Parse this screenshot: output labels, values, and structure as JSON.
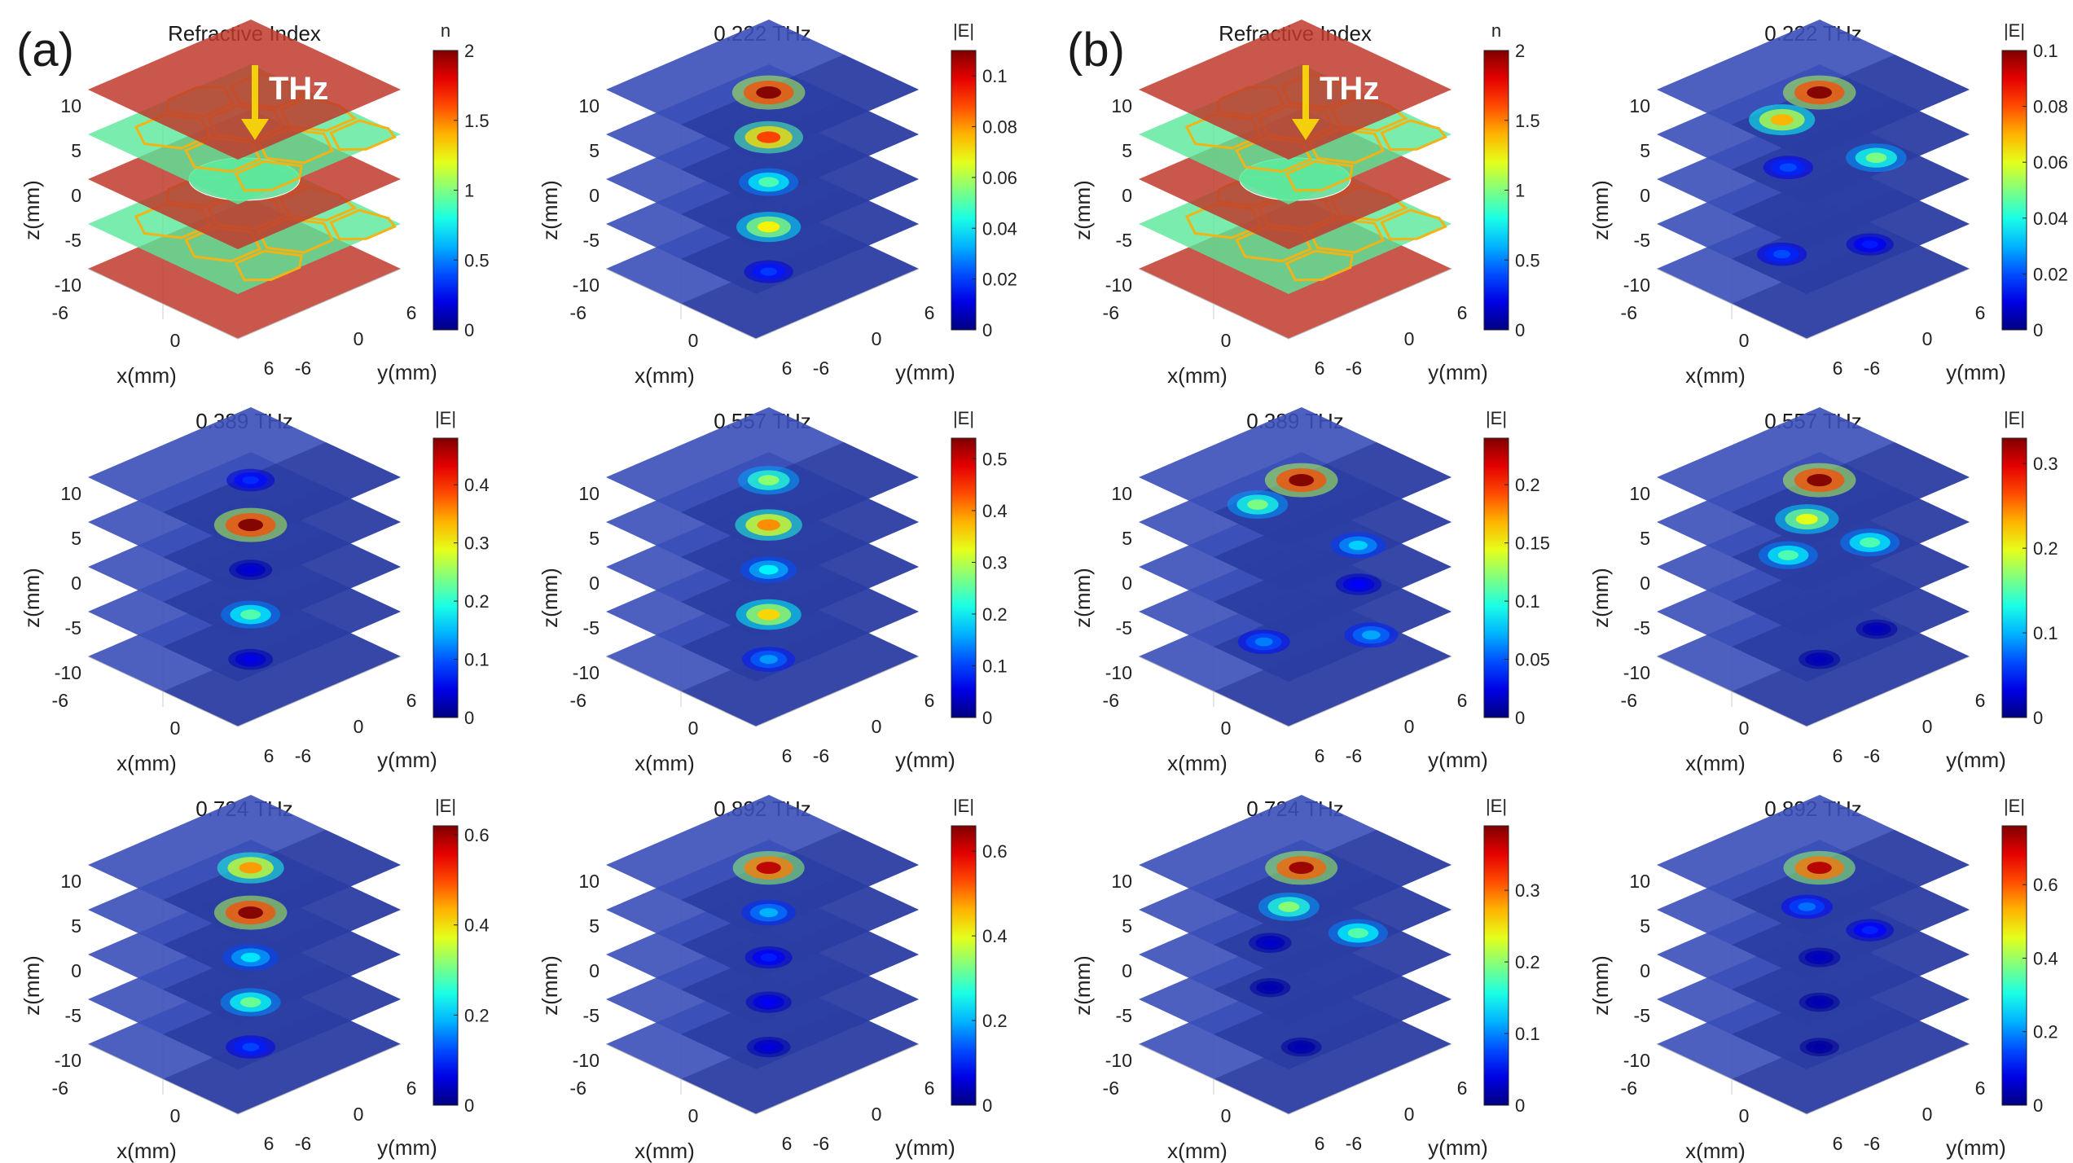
{
  "figure": {
    "group_labels": [
      "(a)",
      "(b)"
    ],
    "arrow_label": "THz"
  },
  "chart_data": [
    {
      "type": "heatmap",
      "id": "a-ri",
      "group": "a",
      "title": "Refractive Index",
      "colorbar_label": "n",
      "clim": [
        0,
        2
      ],
      "cticks": [
        "0",
        "0.5",
        "1",
        "1.5",
        "2"
      ],
      "kind": "ri",
      "xlabel": "x(mm)",
      "ylabel": "y(mm)",
      "zlabel": "z(mm)",
      "zticks": [
        "10",
        "5",
        "0",
        "-5",
        "-10"
      ],
      "xticks": [
        "-6",
        "0",
        "6"
      ],
      "yticks": [
        "-6",
        "0",
        "6"
      ],
      "layers": [
        {
          "z": 10,
          "material": "substrate",
          "n": 2
        },
        {
          "z": 5,
          "material": "honeycomb film",
          "n": 1
        },
        {
          "z": 0,
          "material": "substrate with circular hole",
          "n": 2
        },
        {
          "z": -5,
          "material": "honeycomb film",
          "n": 1
        },
        {
          "z": -10,
          "material": "substrate",
          "n": 2
        }
      ]
    },
    {
      "type": "heatmap",
      "id": "a-222",
      "group": "a",
      "title": "0.222 THz",
      "colorbar_label": "|E|",
      "clim": [
        0,
        0.11
      ],
      "cticks": [
        "0",
        "0.02",
        "0.04",
        "0.06",
        "0.08",
        "0.1"
      ],
      "kind": "field",
      "xlabel": "x(mm)",
      "ylabel": "y(mm)",
      "zlabel": "z(mm)",
      "zticks": [
        "10",
        "5",
        "0",
        "-5",
        "-10"
      ],
      "xticks": [
        "-6",
        "0",
        "6"
      ],
      "yticks": [
        "-6",
        "0",
        "6"
      ],
      "spots": [
        {
          "z": 10,
          "x": 0.5,
          "y": 0,
          "E": 0.11
        },
        {
          "z": 5,
          "x": 0.5,
          "y": 0,
          "E": 0.09
        },
        {
          "z": 0,
          "x": 0.5,
          "y": 0,
          "E": 0.05
        },
        {
          "z": -5,
          "x": 0.5,
          "y": 0,
          "E": 0.07
        },
        {
          "z": -10,
          "x": 0.5,
          "y": 0,
          "E": 0.02
        }
      ]
    },
    {
      "type": "heatmap",
      "id": "b-ri",
      "group": "b",
      "title": "Refractive Index",
      "colorbar_label": "n",
      "clim": [
        0,
        2
      ],
      "cticks": [
        "0",
        "0.5",
        "1",
        "1.5",
        "2"
      ],
      "kind": "ri",
      "xlabel": "x(mm)",
      "ylabel": "y(mm)",
      "zlabel": "z(mm)",
      "zticks": [
        "10",
        "5",
        "0",
        "-5",
        "-10"
      ],
      "xticks": [
        "-6",
        "0",
        "6"
      ],
      "yticks": [
        "-6",
        "0",
        "6"
      ],
      "layers": [
        {
          "z": 10,
          "material": "substrate",
          "n": 2
        },
        {
          "z": 5,
          "material": "honeycomb film",
          "n": 1
        },
        {
          "z": 0,
          "material": "substrate with circular hole",
          "n": 2
        },
        {
          "z": -5,
          "material": "honeycomb film",
          "n": 1
        },
        {
          "z": -10,
          "material": "substrate",
          "n": 2
        }
      ]
    },
    {
      "type": "heatmap",
      "id": "b-222",
      "group": "b",
      "title": "0.222 THz",
      "colorbar_label": "|E|",
      "clim": [
        0,
        0.1
      ],
      "cticks": [
        "0",
        "0.02",
        "0.04",
        "0.06",
        "0.08",
        "0.1"
      ],
      "kind": "field",
      "xlabel": "x(mm)",
      "ylabel": "y(mm)",
      "zlabel": "z(mm)",
      "zticks": [
        "10",
        "5",
        "0",
        "-5",
        "-10"
      ],
      "xticks": [
        "-6",
        "0",
        "6"
      ],
      "yticks": [
        "-6",
        "0",
        "6"
      ],
      "spots": [
        {
          "z": 10,
          "x": 0.5,
          "y": 0,
          "E": 0.1
        },
        {
          "z": 5,
          "x": -2.5,
          "y": 0,
          "E": 0.07
        },
        {
          "z": 5,
          "x": 4.5,
          "y": 0.5,
          "E": 0.05
        },
        {
          "z": 0,
          "x": -2,
          "y": 0,
          "E": 0.02
        },
        {
          "z": -5,
          "x": 4,
          "y": 0.5,
          "E": 0.015
        },
        {
          "z": -10,
          "x": -2.5,
          "y": 0,
          "E": 0.02
        }
      ]
    },
    {
      "type": "heatmap",
      "id": "a-389",
      "group": "a",
      "title": "0.389 THz",
      "colorbar_label": "|E|",
      "clim": [
        0,
        0.48
      ],
      "cticks": [
        "0",
        "0.1",
        "0.2",
        "0.3",
        "0.4"
      ],
      "kind": "field",
      "xlabel": "x(mm)",
      "ylabel": "y(mm)",
      "zlabel": "z(mm)",
      "zticks": [
        "10",
        "5",
        "0",
        "-5",
        "-10"
      ],
      "xticks": [
        "-6",
        "0",
        "6"
      ],
      "yticks": [
        "-6",
        "0",
        "6"
      ],
      "spots": [
        {
          "z": 10,
          "x": 0.5,
          "y": 0,
          "E": 0.08
        },
        {
          "z": 5,
          "x": 0.5,
          "y": 0,
          "E": 0.48
        },
        {
          "z": 0,
          "x": 0.5,
          "y": 0,
          "E": 0.04
        },
        {
          "z": -5,
          "x": 0.5,
          "y": 0,
          "E": 0.22
        },
        {
          "z": -10,
          "x": 0.5,
          "y": 0,
          "E": 0.05
        }
      ]
    },
    {
      "type": "heatmap",
      "id": "a-557",
      "group": "a",
      "title": "0.557 THz",
      "colorbar_label": "|E|",
      "clim": [
        0,
        0.54
      ],
      "cticks": [
        "0",
        "0.1",
        "0.2",
        "0.3",
        "0.4",
        "0.5"
      ],
      "kind": "field",
      "xlabel": "x(mm)",
      "ylabel": "y(mm)",
      "zlabel": "z(mm)",
      "zticks": [
        "10",
        "5",
        "0",
        "-5",
        "-10"
      ],
      "xticks": [
        "-6",
        "0",
        "6"
      ],
      "yticks": [
        "-6",
        "0",
        "6"
      ],
      "spots": [
        {
          "z": 10,
          "x": 0.5,
          "y": 0,
          "E": 0.28
        },
        {
          "z": 5,
          "x": 0.5,
          "y": 0,
          "E": 0.4
        },
        {
          "z": 0,
          "x": 0.5,
          "y": 0,
          "E": 0.2
        },
        {
          "z": -5,
          "x": 0.5,
          "y": 0,
          "E": 0.36
        },
        {
          "z": -10,
          "x": 0.5,
          "y": 0,
          "E": 0.15
        }
      ]
    },
    {
      "type": "heatmap",
      "id": "b-389",
      "group": "b",
      "title": "0.389 THz",
      "colorbar_label": "|E|",
      "clim": [
        0,
        0.24
      ],
      "cticks": [
        "0",
        "0.05",
        "0.1",
        "0.15",
        "0.2"
      ],
      "kind": "field",
      "xlabel": "x(mm)",
      "ylabel": "y(mm)",
      "zlabel": "z(mm)",
      "zticks": [
        "10",
        "5",
        "0",
        "-5",
        "-10"
      ],
      "xticks": [
        "-6",
        "0",
        "6"
      ],
      "yticks": [
        "-6",
        "0",
        "6"
      ],
      "spots": [
        {
          "z": 10,
          "x": 0.5,
          "y": 0,
          "E": 0.24
        },
        {
          "z": 5,
          "x": -3,
          "y": 0,
          "E": 0.12
        },
        {
          "z": 5,
          "x": 4.5,
          "y": 0.5,
          "E": 0.08
        },
        {
          "z": 0,
          "x": 4,
          "y": 1,
          "E": 0.03
        },
        {
          "z": -5,
          "x": 5,
          "y": 1,
          "E": 0.07
        },
        {
          "z": -10,
          "x": -2.5,
          "y": 0,
          "E": 0.06
        }
      ]
    },
    {
      "type": "heatmap",
      "id": "b-557",
      "group": "b",
      "title": "0.557 THz",
      "colorbar_label": "|E|",
      "clim": [
        0,
        0.33
      ],
      "cticks": [
        "0",
        "0.1",
        "0.2",
        "0.3"
      ],
      "kind": "field",
      "xlabel": "x(mm)",
      "ylabel": "y(mm)",
      "zlabel": "z(mm)",
      "zticks": [
        "10",
        "5",
        "0",
        "-5",
        "-10"
      ],
      "xticks": [
        "-6",
        "0",
        "6"
      ],
      "yticks": [
        "-6",
        "0",
        "6"
      ],
      "spots": [
        {
          "z": 10,
          "x": 0.5,
          "y": 0,
          "E": 0.33
        },
        {
          "z": 5,
          "x": -0.5,
          "y": 0,
          "E": 0.2
        },
        {
          "z": 5,
          "x": 4,
          "y": 0.5,
          "E": 0.15
        },
        {
          "z": 0,
          "x": -2,
          "y": 0,
          "E": 0.15
        },
        {
          "z": -5,
          "x": 4,
          "y": 1,
          "E": 0.02
        },
        {
          "z": -10,
          "x": 0.5,
          "y": 0,
          "E": 0.02
        }
      ]
    },
    {
      "type": "heatmap",
      "id": "a-724",
      "group": "a",
      "title": "0.724 THz",
      "colorbar_label": "|E|",
      "clim": [
        0,
        0.62
      ],
      "cticks": [
        "0",
        "0.2",
        "0.4",
        "0.6"
      ],
      "kind": "field",
      "xlabel": "x(mm)",
      "ylabel": "y(mm)",
      "zlabel": "z(mm)",
      "zticks": [
        "10",
        "5",
        "0",
        "-5",
        "-10"
      ],
      "xticks": [
        "-6",
        "0",
        "6"
      ],
      "yticks": [
        "-6",
        "0",
        "6"
      ],
      "spots": [
        {
          "z": 10,
          "x": 0.5,
          "y": 0,
          "E": 0.45
        },
        {
          "z": 5,
          "x": 0.5,
          "y": 0,
          "E": 0.62
        },
        {
          "z": 0,
          "x": 0.5,
          "y": 0,
          "E": 0.22
        },
        {
          "z": -5,
          "x": 0.5,
          "y": 0,
          "E": 0.3
        },
        {
          "z": -10,
          "x": 0.5,
          "y": 0,
          "E": 0.12
        }
      ]
    },
    {
      "type": "heatmap",
      "id": "a-892",
      "group": "a",
      "title": "0.892 THz",
      "colorbar_label": "|E|",
      "clim": [
        0,
        0.66
      ],
      "cticks": [
        "0",
        "0.2",
        "0.4",
        "0.6"
      ],
      "kind": "field",
      "xlabel": "x(mm)",
      "ylabel": "y(mm)",
      "zlabel": "z(mm)",
      "zticks": [
        "10",
        "5",
        "0",
        "-5",
        "-10"
      ],
      "xticks": [
        "-6",
        "0",
        "6"
      ],
      "yticks": [
        "-6",
        "0",
        "6"
      ],
      "spots": [
        {
          "z": 10,
          "x": 0.5,
          "y": 0,
          "E": 0.62
        },
        {
          "z": 5,
          "x": 0.5,
          "y": 0,
          "E": 0.2
        },
        {
          "z": 0,
          "x": 0.5,
          "y": 0,
          "E": 0.1
        },
        {
          "z": -5,
          "x": 0.5,
          "y": 0,
          "E": 0.08
        },
        {
          "z": -10,
          "x": 0.5,
          "y": 0,
          "E": 0.06
        }
      ]
    },
    {
      "type": "heatmap",
      "id": "b-724",
      "group": "b",
      "title": "0.724 THz",
      "colorbar_label": "|E|",
      "clim": [
        0,
        0.39
      ],
      "cticks": [
        "0",
        "0.1",
        "0.2",
        "0.3"
      ],
      "kind": "field",
      "xlabel": "x(mm)",
      "ylabel": "y(mm)",
      "zlabel": "z(mm)",
      "zticks": [
        "10",
        "5",
        "0",
        "-5",
        "-10"
      ],
      "xticks": [
        "-6",
        "0",
        "6"
      ],
      "yticks": [
        "-6",
        "0",
        "6"
      ],
      "spots": [
        {
          "z": 10,
          "x": 0.5,
          "y": 0,
          "E": 0.38
        },
        {
          "z": 5,
          "x": -0.5,
          "y": 0,
          "E": 0.2
        },
        {
          "z": 5,
          "x": 4.5,
          "y": 0.5,
          "E": 0.18
        },
        {
          "z": 0,
          "x": -2,
          "y": 0,
          "E": 0.03
        },
        {
          "z": -5,
          "x": -2,
          "y": 0,
          "E": 0.02
        },
        {
          "z": -10,
          "x": 0.5,
          "y": 0,
          "E": 0.02
        }
      ]
    },
    {
      "type": "heatmap",
      "id": "b-892",
      "group": "b",
      "title": "0.892 THz",
      "colorbar_label": "|E|",
      "clim": [
        0,
        0.76
      ],
      "cticks": [
        "0",
        "0.2",
        "0.4",
        "0.6"
      ],
      "kind": "field",
      "xlabel": "x(mm)",
      "ylabel": "y(mm)",
      "zlabel": "z(mm)",
      "zticks": [
        "10",
        "5",
        "0",
        "-5",
        "-10"
      ],
      "xticks": [
        "-6",
        "0",
        "6"
      ],
      "yticks": [
        "-6",
        "0",
        "6"
      ],
      "spots": [
        {
          "z": 10,
          "x": 0.5,
          "y": 0,
          "E": 0.72
        },
        {
          "z": 5,
          "x": -0.5,
          "y": 0,
          "E": 0.18
        },
        {
          "z": 5,
          "x": 4,
          "y": 0.5,
          "E": 0.12
        },
        {
          "z": 0,
          "x": 0.5,
          "y": 0,
          "E": 0.05
        },
        {
          "z": -5,
          "x": 0.5,
          "y": 0,
          "E": 0.04
        },
        {
          "z": -10,
          "x": 0.5,
          "y": 0,
          "E": 0.03
        }
      ]
    }
  ]
}
